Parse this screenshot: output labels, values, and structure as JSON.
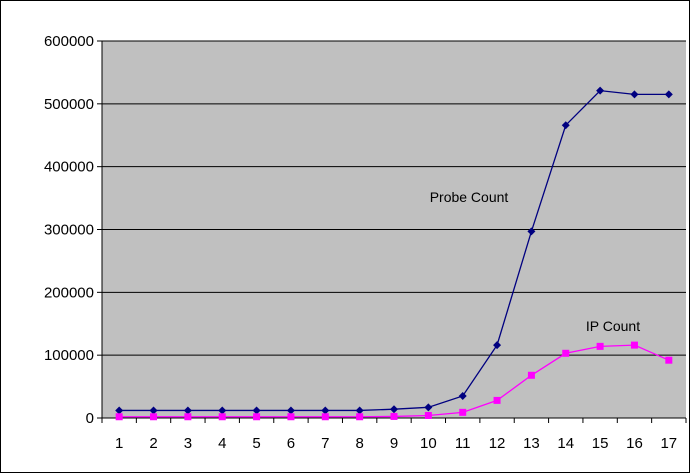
{
  "chart_data": {
    "type": "line",
    "x": [
      1,
      2,
      3,
      4,
      5,
      6,
      7,
      8,
      9,
      10,
      11,
      12,
      13,
      14,
      15,
      16,
      17
    ],
    "ylim": [
      0,
      600000
    ],
    "yticks": [
      0,
      100000,
      200000,
      300000,
      400000,
      500000,
      600000
    ],
    "ytick_labels": [
      "0",
      "100000",
      "200000",
      "300000",
      "400000",
      "500000",
      "600000"
    ],
    "xtick_labels": [
      "1",
      "2",
      "3",
      "4",
      "5",
      "6",
      "7",
      "8",
      "9",
      "10",
      "11",
      "12",
      "13",
      "14",
      "15",
      "16",
      "17"
    ],
    "grid": true,
    "plot_background": "#c0c0c0",
    "series": [
      {
        "name": "Probe Count",
        "color": "#000080",
        "marker": "diamond",
        "values": [
          12000,
          12000,
          12000,
          12000,
          12000,
          12000,
          12000,
          12000,
          14000,
          17000,
          35000,
          116000,
          297000,
          466000,
          521000,
          515000,
          515000
        ]
      },
      {
        "name": "IP Count",
        "color": "#ff00ff",
        "marker": "square",
        "values": [
          2000,
          2000,
          2000,
          2000,
          2000,
          2000,
          2000,
          2000,
          2500,
          4000,
          9000,
          28000,
          68000,
          103000,
          114000,
          116000,
          92000
        ]
      }
    ]
  }
}
